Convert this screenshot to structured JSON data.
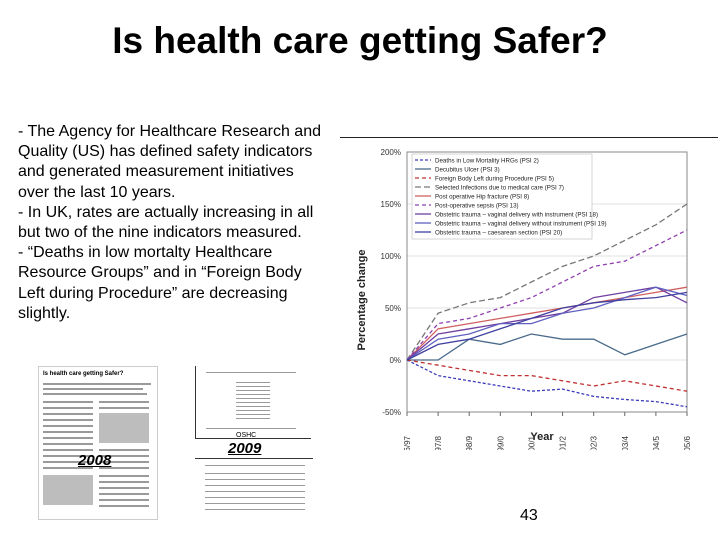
{
  "slide": {
    "title": "Is health care getting Safer?",
    "body_lines": [
      "- The Agency for Healthcare Research and",
      "Quality (US) has defined safety indicators",
      "and generated measurement initiatives",
      "over the last 10 years.",
      "- In UK, rates are actually increasing in all",
      "but two of the nine indicators measured.",
      "- “Deaths in low mortalty Healthcare",
      "Resource Groups” and in “Foreign Body",
      "Left during Procedure” are decreasing",
      "slightly."
    ],
    "year_2008": "2008",
    "year_2009": "2009",
    "ohsc": "OSHC",
    "page_number": "43"
  },
  "chart_data": {
    "type": "line",
    "xlabel": "Year",
    "ylabel": "Percentage change",
    "categories": [
      "1996/97",
      "1997/8",
      "1998/9",
      "1999/0",
      "2000/1",
      "2001/2",
      "2002/3",
      "2003/4",
      "2004/5",
      "2005/6"
    ],
    "yticks": [
      "200%",
      "150%",
      "100%",
      "50%",
      "0%",
      "-50%"
    ],
    "ylim": [
      -50,
      200
    ],
    "legend_position": "top",
    "series": [
      {
        "name": "Deaths in Low Mortality HRGs (PSI 2)",
        "color": "#3b3bb8",
        "dash": "3,2",
        "values": [
          0,
          -15,
          -20,
          -25,
          -30,
          -28,
          -35,
          -38,
          -40,
          -45
        ]
      },
      {
        "name": "Decubitus Ulcer (PSI 3)",
        "color": "#4a6a8a",
        "dash": "",
        "values": [
          0,
          0,
          20,
          15,
          25,
          20,
          20,
          5,
          15,
          25
        ]
      },
      {
        "name": "Foreign Body Left during Procedure (PSI 5)",
        "color": "#c03030",
        "dash": "4,3",
        "values": [
          0,
          -5,
          -10,
          -15,
          -15,
          -20,
          -25,
          -20,
          -25,
          -30
        ]
      },
      {
        "name": "Selected Infections due to medical care (PSI 7)",
        "color": "#777777",
        "dash": "6,3",
        "values": [
          0,
          45,
          55,
          60,
          75,
          90,
          100,
          115,
          130,
          150
        ]
      },
      {
        "name": "Post operative Hip fracture (PSI 8)",
        "color": "#d06060",
        "dash": "",
        "values": [
          0,
          30,
          35,
          40,
          45,
          50,
          55,
          60,
          65,
          70
        ]
      },
      {
        "name": "Post-operative sepsis (PSI 13)",
        "color": "#9040b0",
        "dash": "4,3",
        "values": [
          0,
          35,
          40,
          50,
          60,
          75,
          90,
          95,
          110,
          125
        ]
      },
      {
        "name": "Obstetric trauma – vaginal delivery with instrument (PSI 18)",
        "color": "#7040a0",
        "dash": "",
        "values": [
          0,
          25,
          30,
          35,
          40,
          45,
          60,
          65,
          70,
          55
        ]
      },
      {
        "name": "Obstetric trauma – vaginal delivery without instrument (PSI 19)",
        "color": "#6060c0",
        "dash": "",
        "values": [
          0,
          20,
          25,
          35,
          35,
          45,
          50,
          60,
          70,
          62
        ]
      },
      {
        "name": "Obstetric trauma – caesarean section (PSI 20)",
        "color": "#4040a0",
        "dash": "",
        "values": [
          0,
          15,
          20,
          30,
          40,
          50,
          55,
          58,
          60,
          65
        ]
      }
    ]
  }
}
